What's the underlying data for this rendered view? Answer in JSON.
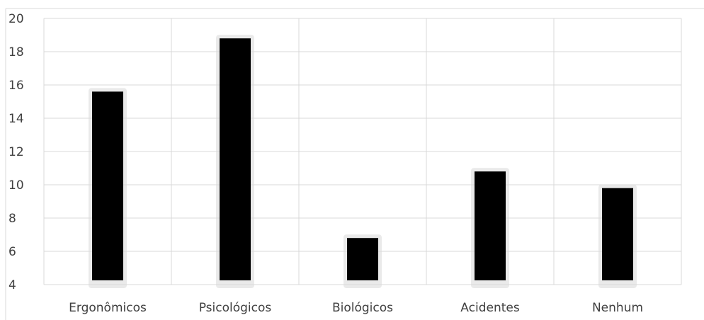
{
  "chart_data": {
    "type": "bar",
    "categories": [
      "Ergonômicos",
      "Psicológicos",
      "Biológicos",
      "Acidentes",
      "Nenhum"
    ],
    "values": [
      15.6,
      18.8,
      6.8,
      10.8,
      9.8
    ],
    "ylim": [
      4,
      20
    ],
    "yticks": [
      "4",
      "6",
      "8",
      "10",
      "12",
      "14",
      "16",
      "18",
      "20"
    ],
    "grid": true,
    "legend": "none",
    "colors": {
      "bar": "#000000",
      "bar_shadow": "#d9d9d9",
      "grid": "#d9d9d9",
      "text": "#404040"
    }
  }
}
